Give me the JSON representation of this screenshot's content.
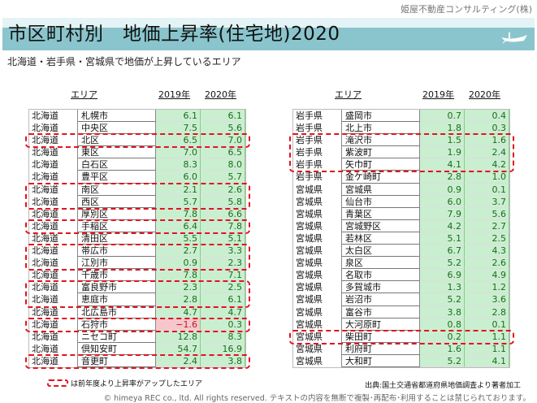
{
  "company": "姫屋不動産コンサルティング(株)",
  "title": "市区町村別　地価上昇率(住宅地)2020",
  "subtitle": "北海道・岩手県・宮城県で地価が上昇しているエリア",
  "headers": {
    "area": "エリア",
    "y2019": "2019年",
    "y2020": "2020年"
  },
  "left_table": [
    {
      "pref": "北海道",
      "city": "札幌市",
      "v2019": "6.1",
      "v2020": "6.1",
      "up": false
    },
    {
      "pref": "北海道",
      "city": "中央区",
      "v2019": "7.5",
      "v2020": "5.6",
      "up": false
    },
    {
      "pref": "北海道",
      "city": "北区",
      "v2019": "6.5",
      "v2020": "7.0",
      "up": true
    },
    {
      "pref": "北海道",
      "city": "東区",
      "v2019": "7.0",
      "v2020": "6.5",
      "up": false
    },
    {
      "pref": "北海道",
      "city": "白石区",
      "v2019": "8.3",
      "v2020": "8.0",
      "up": false
    },
    {
      "pref": "北海道",
      "city": "豊平区",
      "v2019": "6.0",
      "v2020": "5.7",
      "up": false
    },
    {
      "pref": "北海道",
      "city": "南区",
      "v2019": "2.1",
      "v2020": "2.6",
      "up": true
    },
    {
      "pref": "北海道",
      "city": "西区",
      "v2019": "5.7",
      "v2020": "5.8",
      "up": true
    },
    {
      "pref": "北海道",
      "city": "厚別区",
      "v2019": "7.8",
      "v2020": "6.6",
      "up": false
    },
    {
      "pref": "北海道",
      "city": "手稲区",
      "v2019": "6.4",
      "v2020": "7.8",
      "up": true
    },
    {
      "pref": "北海道",
      "city": "清田区",
      "v2019": "5.5",
      "v2020": "5.1",
      "up": false
    },
    {
      "pref": "北海道",
      "city": "帯広市",
      "v2019": "2.7",
      "v2020": "3.3",
      "up": true
    },
    {
      "pref": "北海道",
      "city": "江別市",
      "v2019": "0.9",
      "v2020": "2.3",
      "up": true
    },
    {
      "pref": "北海道",
      "city": "千歳市",
      "v2019": "7.8",
      "v2020": "7.1",
      "up": false
    },
    {
      "pref": "北海道",
      "city": "富良野市",
      "v2019": "2.3",
      "v2020": "2.5",
      "up": true
    },
    {
      "pref": "北海道",
      "city": "恵庭市",
      "v2019": "2.8",
      "v2020": "6.1",
      "up": true
    },
    {
      "pref": "北海道",
      "city": "北広島市",
      "v2019": "4.7",
      "v2020": "4.7",
      "up": false
    },
    {
      "pref": "北海道",
      "city": "石狩市",
      "v2019": "−1.6",
      "v2020": "0.3",
      "up": true
    },
    {
      "pref": "北海道",
      "city": "ニセコ町",
      "v2019": "12.8",
      "v2020": "8.3",
      "up": false
    },
    {
      "pref": "北海道",
      "city": "倶知安町",
      "v2019": "54.7",
      "v2020": "16.9",
      "up": false
    },
    {
      "pref": "北海道",
      "city": "音更町",
      "v2019": "2.4",
      "v2020": "3.8",
      "up": true
    }
  ],
  "right_table": [
    {
      "pref": "岩手県",
      "city": "盛岡市",
      "v2019": "0.7",
      "v2020": "0.4",
      "up": false
    },
    {
      "pref": "岩手県",
      "city": "北上市",
      "v2019": "1.8",
      "v2020": "0.3",
      "up": false
    },
    {
      "pref": "岩手県",
      "city": "滝沢市",
      "v2019": "1.5",
      "v2020": "1.6",
      "up": true
    },
    {
      "pref": "岩手県",
      "city": "紫波町",
      "v2019": "1.9",
      "v2020": "2.4",
      "up": true
    },
    {
      "pref": "岩手県",
      "city": "矢巾町",
      "v2019": "4.1",
      "v2020": "4.2",
      "up": true
    },
    {
      "pref": "岩手県",
      "city": "金ケ崎町",
      "v2019": "2.8",
      "v2020": "1.0",
      "up": false
    },
    {
      "pref": "宮城県",
      "city": "宮城県",
      "v2019": "0.9",
      "v2020": "0.1",
      "up": false
    },
    {
      "pref": "宮城県",
      "city": "仙台市",
      "v2019": "6.0",
      "v2020": "3.7",
      "up": false
    },
    {
      "pref": "宮城県",
      "city": "青葉区",
      "v2019": "7.9",
      "v2020": "5.6",
      "up": false
    },
    {
      "pref": "宮城県",
      "city": "宮城野区",
      "v2019": "4.2",
      "v2020": "2.7",
      "up": false
    },
    {
      "pref": "宮城県",
      "city": "若林区",
      "v2019": "5.1",
      "v2020": "2.5",
      "up": false
    },
    {
      "pref": "宮城県",
      "city": "太白区",
      "v2019": "6.7",
      "v2020": "4.3",
      "up": false
    },
    {
      "pref": "宮城県",
      "city": "泉区",
      "v2019": "5.2",
      "v2020": "2.6",
      "up": false
    },
    {
      "pref": "宮城県",
      "city": "名取市",
      "v2019": "6.9",
      "v2020": "4.9",
      "up": false
    },
    {
      "pref": "宮城県",
      "city": "多賀城市",
      "v2019": "1.3",
      "v2020": "1.2",
      "up": false
    },
    {
      "pref": "宮城県",
      "city": "岩沼市",
      "v2019": "5.2",
      "v2020": "3.6",
      "up": false
    },
    {
      "pref": "宮城県",
      "city": "富谷市",
      "v2019": "3.8",
      "v2020": "2.8",
      "up": false
    },
    {
      "pref": "宮城県",
      "city": "大河原町",
      "v2019": "0.8",
      "v2020": "0.1",
      "up": false
    },
    {
      "pref": "宮城県",
      "city": "柴田町",
      "v2019": "0.2",
      "v2020": "1.1",
      "up": true
    },
    {
      "pref": "宮城県",
      "city": "利府町",
      "v2019": "1.6",
      "v2020": "1.1",
      "up": false
    },
    {
      "pref": "宮城県",
      "city": "大和町",
      "v2019": "5.2",
      "v2020": "4.1",
      "up": false
    }
  ],
  "legend": "は前年度より上昇率がアップしたエリア",
  "source": "出典:国土交通省都道府県地価調査より著者加工",
  "copyright": "© himeya REC co., ltd. All rights reserved. テキストの内容を無断で複製･再配布･利用することは禁じられております。",
  "colors": {
    "band": "#8ac5cd",
    "highlight": "#e0141e",
    "cell": "#c9efd0",
    "negative": "#f7c6cc"
  }
}
